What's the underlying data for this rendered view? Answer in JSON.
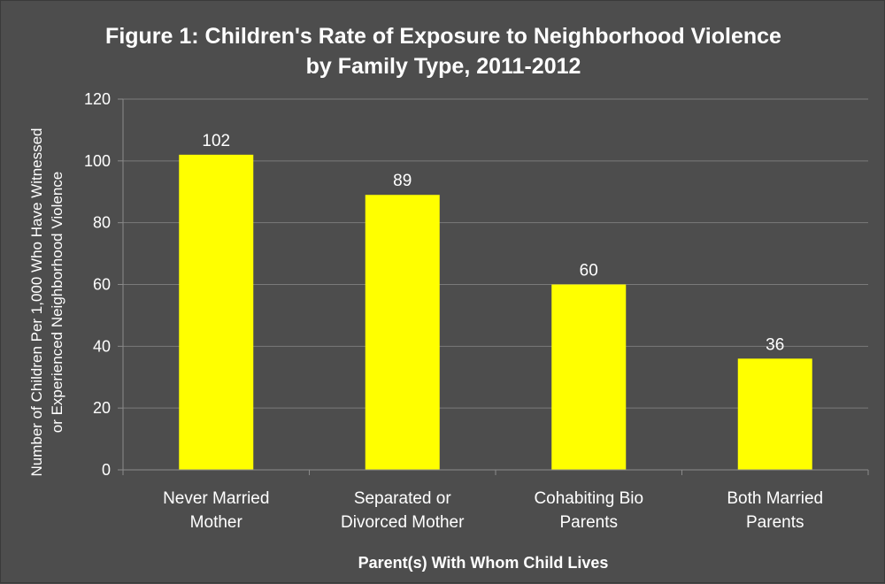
{
  "chart_data": {
    "type": "bar",
    "title_lines": [
      "Figure 1: Children's Rate of Exposure to Neighborhood Violence",
      "by Family Type, 2011-2012"
    ],
    "categories": [
      [
        "Never Married",
        "Mother"
      ],
      [
        "Separated or",
        "Divorced Mother"
      ],
      [
        "Cohabiting Bio",
        "Parents"
      ],
      [
        "Both Married",
        "Parents"
      ]
    ],
    "values": [
      102,
      89,
      60,
      36
    ],
    "data_labels": [
      "102",
      "89",
      "60",
      "36"
    ],
    "xlabel": "Parent(s) With Whom Child Lives",
    "ylabel_lines": [
      "Number of Children Per 1,000 Who Have Witnessed",
      "or Experienced Neighborhood Violence"
    ],
    "ylim": [
      0,
      120
    ],
    "yticks": [
      0,
      20,
      40,
      60,
      80,
      100,
      120
    ],
    "grid": true,
    "legend": "none"
  },
  "colors": {
    "background": "#4d4d4d",
    "bar": "#ffff00",
    "gridline": "#7a7a7a",
    "axis": "#8a8a8a",
    "text": "#ffffff"
  }
}
